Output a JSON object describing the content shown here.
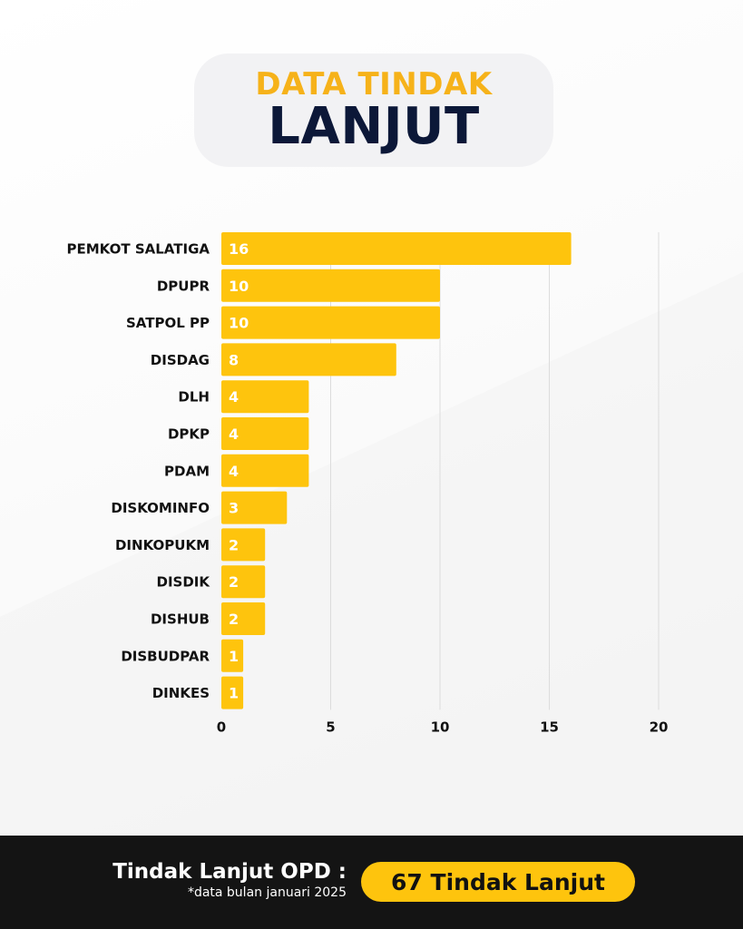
{
  "header": {
    "title_line1": "DATA TINDAK",
    "title_line2": "LANJUT"
  },
  "chart_data": {
    "type": "bar",
    "orientation": "horizontal",
    "categories": [
      "PEMKOT SALATIGA",
      "DPUPR",
      "SATPOL PP",
      "DISDAG",
      "DLH",
      "DPKP",
      "PDAM",
      "DISKOMINFO",
      "DINKOPUKM",
      "DISDIK",
      "DISHUB",
      "DISBUDPAR",
      "DINKES"
    ],
    "values": [
      16,
      10,
      10,
      8,
      4,
      4,
      4,
      3,
      2,
      2,
      2,
      1,
      1
    ],
    "xlim": [
      0,
      20
    ],
    "xticks": [
      0,
      5,
      10,
      15,
      20
    ],
    "grid": true,
    "bar_color": "#fec40d",
    "data_labels": true
  },
  "footer": {
    "label": "Tindak Lanjut OPD :",
    "note": "*data bulan januari 2025",
    "badge": "67 Tindak Lanjut"
  },
  "colors": {
    "accent": "#fec40d",
    "title_yellow": "#f6b21a",
    "title_navy": "#0c1838",
    "footer_bg": "#141414"
  }
}
